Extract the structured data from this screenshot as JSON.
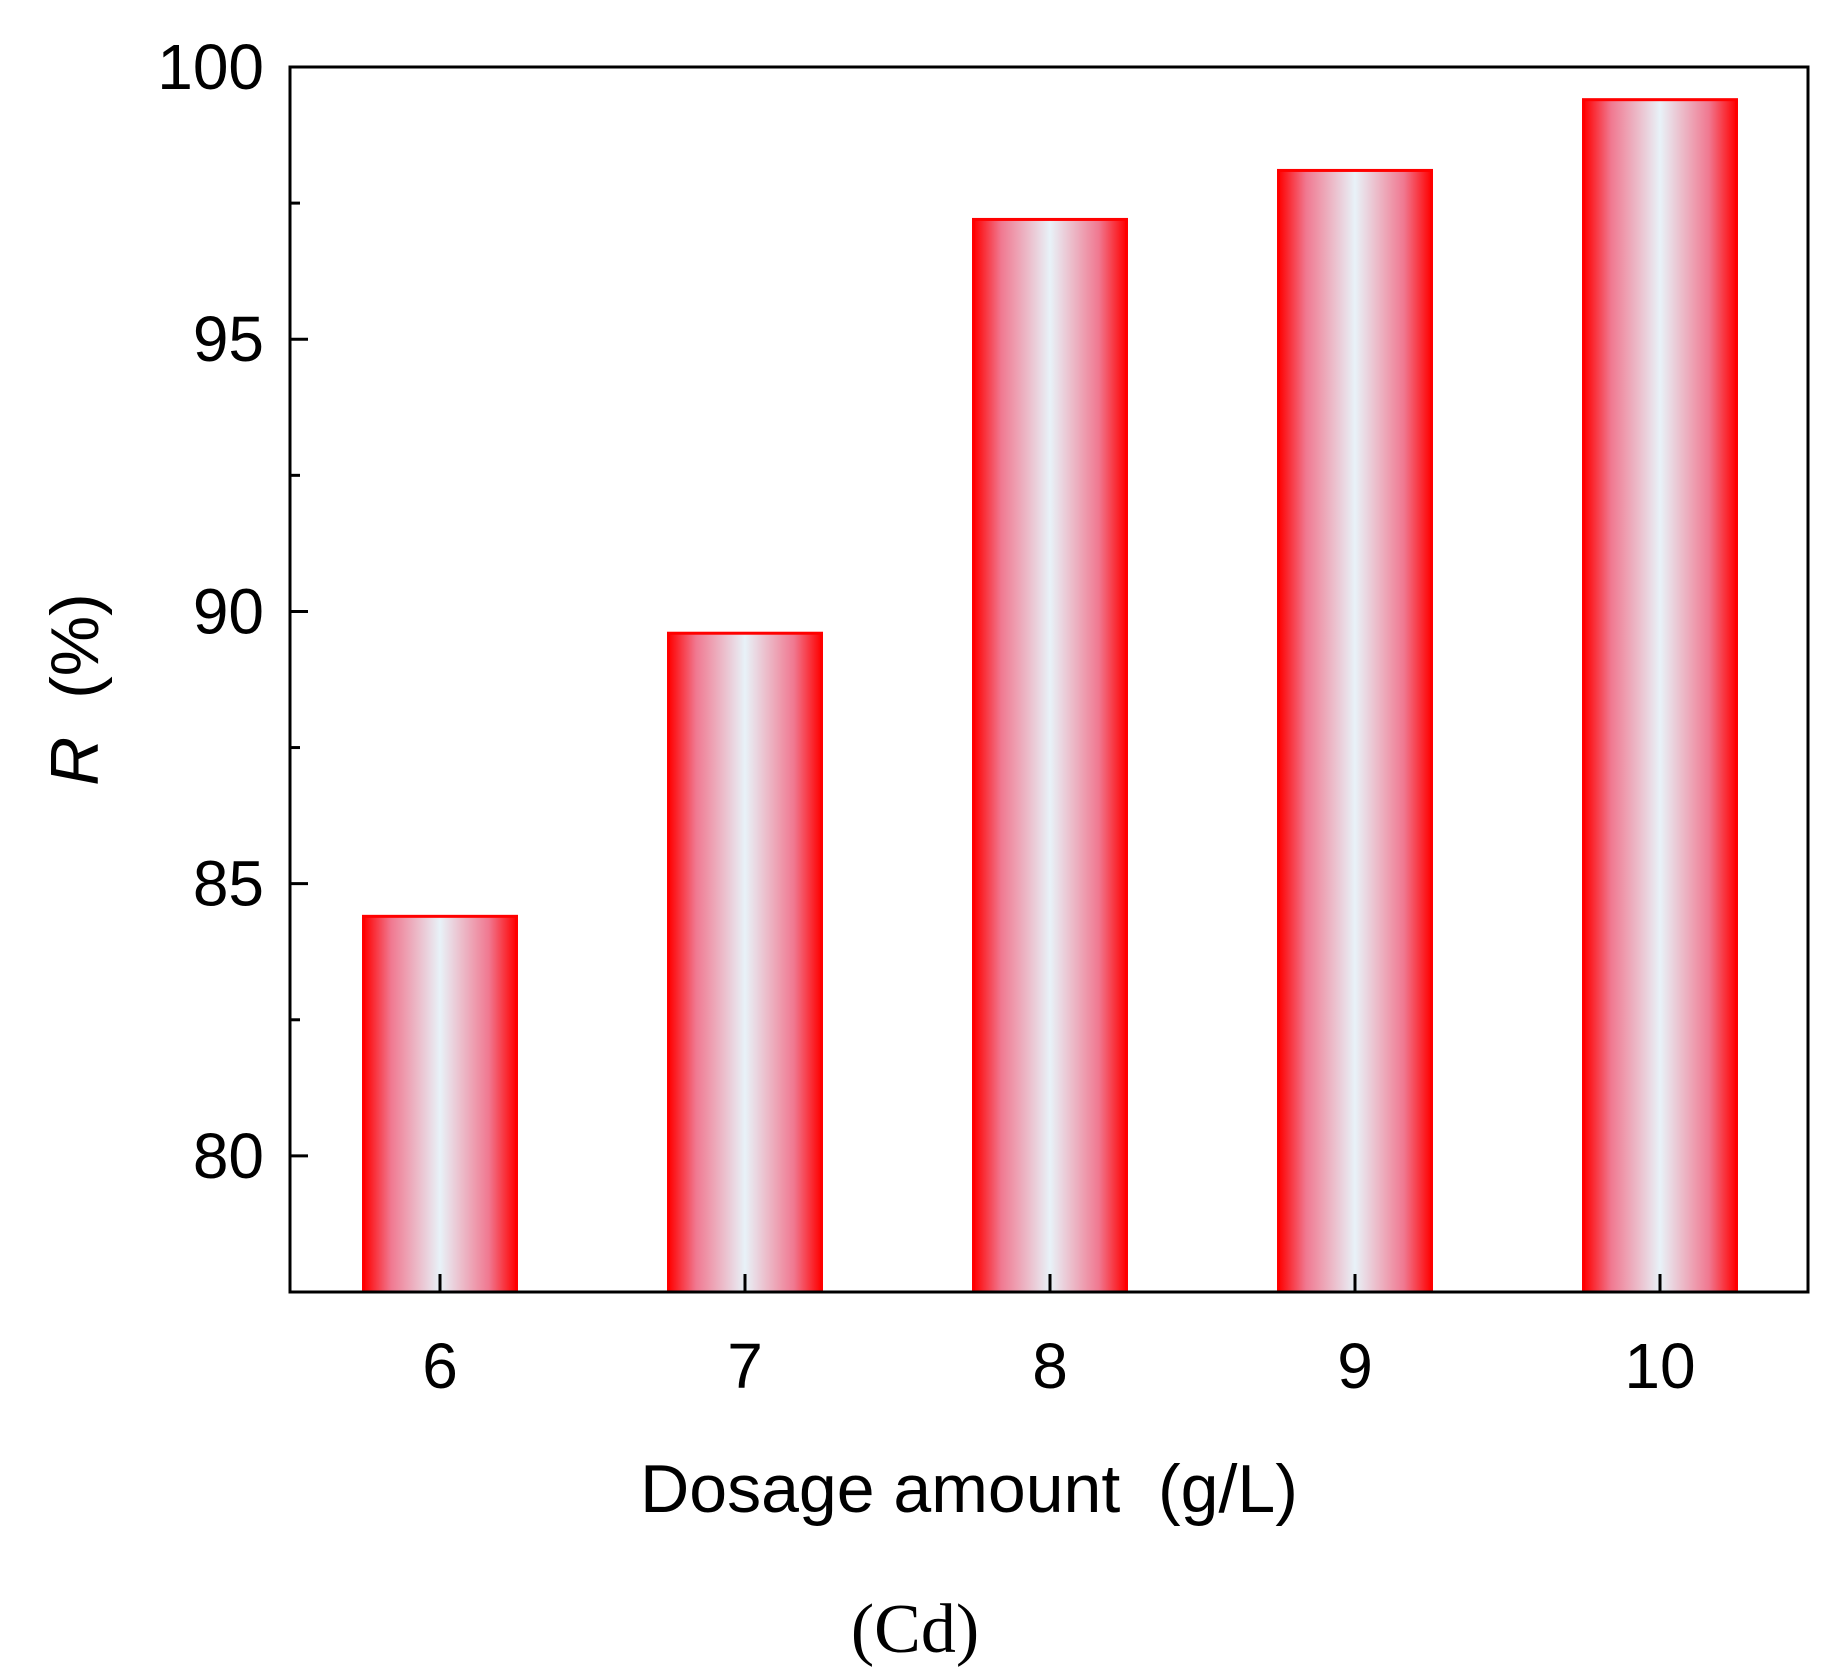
{
  "chart_data": {
    "type": "bar",
    "categories": [
      "6",
      "7",
      "8",
      "9",
      "10"
    ],
    "values": [
      84.4,
      89.6,
      97.2,
      98.1,
      99.4
    ],
    "ylim": [
      77.5,
      100
    ],
    "yticks": [
      "80",
      "85",
      "90",
      "95",
      "100"
    ],
    "ytick_values": [
      80,
      85,
      90,
      95,
      100
    ],
    "xlabel": "Dosage amount  (g/L)",
    "ylabel_italic": "R",
    "ylabel_rest": "  (%)",
    "caption": "(Cd)",
    "grid": false,
    "colors": {
      "bar_edge": "#ff0000",
      "bar_edge_fade": "#f07890",
      "bar_center": "#e8f2f8",
      "axis": "#000000"
    }
  }
}
